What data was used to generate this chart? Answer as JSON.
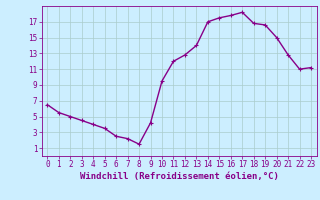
{
  "x": [
    0,
    1,
    2,
    3,
    4,
    5,
    6,
    7,
    8,
    9,
    10,
    11,
    12,
    13,
    14,
    15,
    16,
    17,
    18,
    19,
    20,
    21,
    22,
    23
  ],
  "y": [
    6.5,
    5.5,
    5.0,
    4.5,
    4.0,
    3.5,
    2.5,
    2.2,
    1.5,
    4.2,
    9.5,
    12.0,
    12.8,
    14.0,
    17.0,
    17.5,
    17.8,
    18.2,
    16.8,
    16.6,
    15.0,
    12.8,
    11.0,
    11.2
  ],
  "line_color": "#880088",
  "marker": "+",
  "markersize": 3,
  "linewidth": 1.0,
  "xlabel": "Windchill (Refroidissement éolien,°C)",
  "background_color": "#cceeff",
  "grid_color": "#aacccc",
  "tick_color": "#880088",
  "xlim": [
    -0.5,
    23.5
  ],
  "ylim": [
    0,
    19
  ],
  "yticks": [
    1,
    3,
    5,
    7,
    9,
    11,
    13,
    15,
    17
  ],
  "xticks": [
    0,
    1,
    2,
    3,
    4,
    5,
    6,
    7,
    8,
    9,
    10,
    11,
    12,
    13,
    14,
    15,
    16,
    17,
    18,
    19,
    20,
    21,
    22,
    23
  ],
  "tick_fontsize": 5.5,
  "xlabel_fontsize": 6.5
}
